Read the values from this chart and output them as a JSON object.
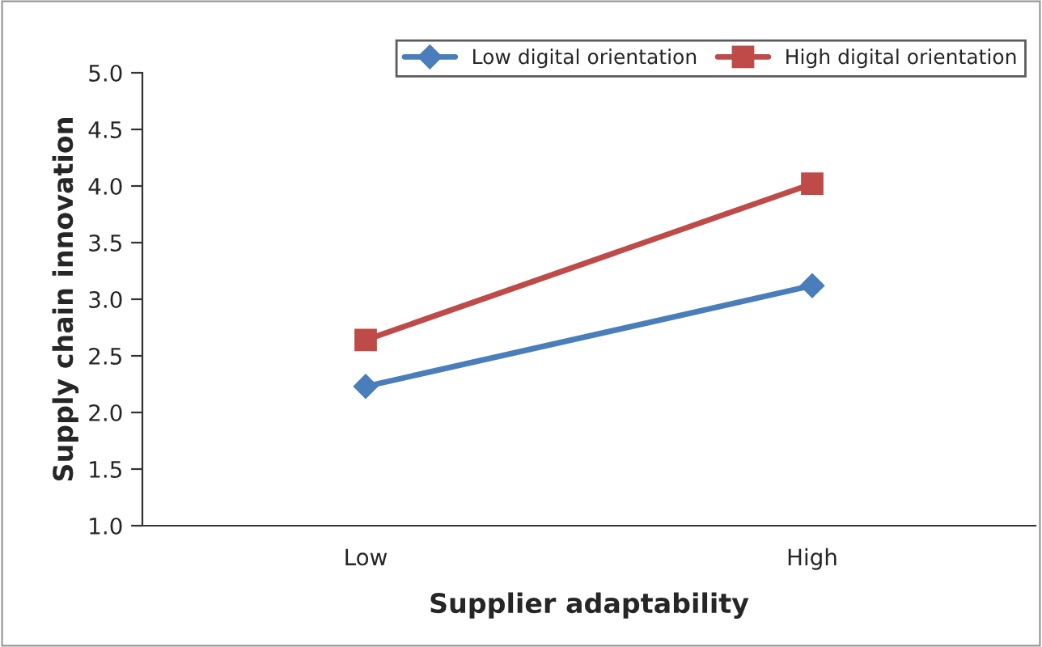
{
  "chart_data": {
    "type": "line",
    "xlabel": "Supplier adaptability",
    "ylabel": "Supply chain innovation",
    "categories": [
      "Low",
      "High"
    ],
    "series": [
      {
        "name": "Low digital orientation",
        "color": "#4a7ebb",
        "values": [
          2.23,
          3.12
        ],
        "marker": "diamond"
      },
      {
        "name": "High digital orientation",
        "color": "#be4b48",
        "values": [
          2.64,
          4.02
        ],
        "marker": "square"
      }
    ],
    "ylim": [
      1.0,
      5.0
    ],
    "yticks": [
      {
        "value": 1.0,
        "label": "1.0"
      },
      {
        "value": 1.5,
        "label": "1.5"
      },
      {
        "value": 2.0,
        "label": "2.0"
      },
      {
        "value": 2.5,
        "label": "2.5"
      },
      {
        "value": 3.0,
        "label": "3.0"
      },
      {
        "value": 3.5,
        "label": "3.5"
      },
      {
        "value": 4.0,
        "label": "4.0"
      },
      {
        "value": 4.5,
        "label": "4.5"
      },
      {
        "value": 5.0,
        "label": "5.0"
      }
    ],
    "grid": false,
    "legend": "top right",
    "line_style": "solid"
  }
}
